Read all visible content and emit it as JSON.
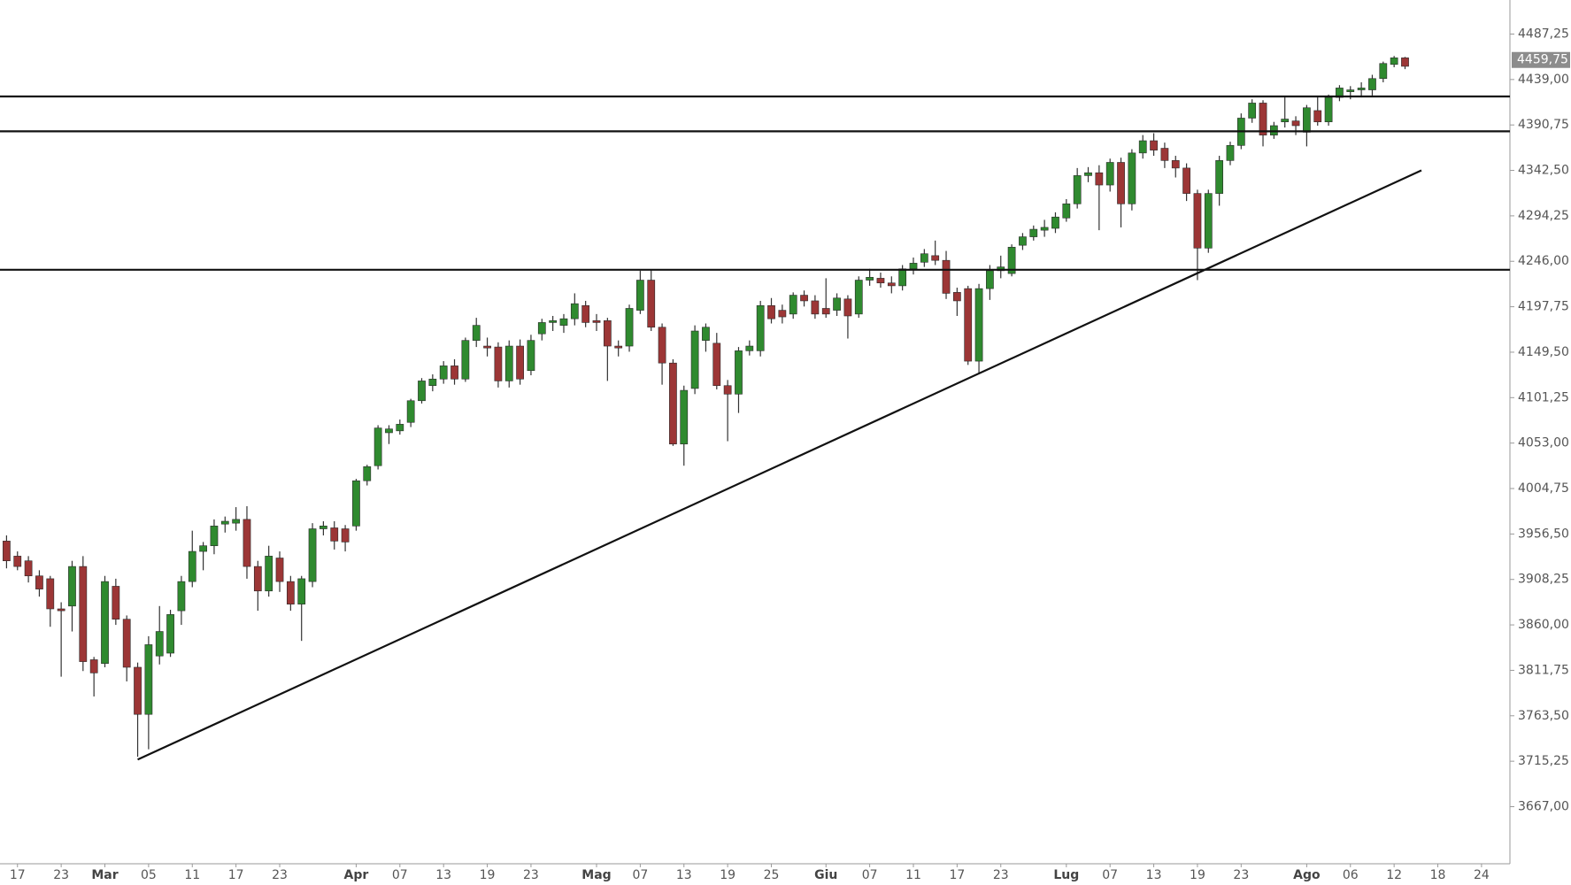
{
  "chart_data": {
    "type": "candlestick",
    "x": [
      0,
      1,
      2,
      3,
      4,
      5,
      6,
      7,
      8,
      9,
      10,
      11,
      12,
      13,
      14,
      15,
      16,
      17,
      18,
      19,
      20,
      21,
      22,
      23,
      24,
      25,
      26,
      27,
      28,
      29,
      30,
      31,
      32,
      33,
      34,
      35,
      36,
      37,
      38,
      39,
      40,
      41,
      42,
      43,
      44,
      45,
      46,
      47,
      48,
      49,
      50,
      51,
      52,
      53,
      54,
      55,
      56,
      57,
      58,
      59,
      60,
      61,
      62,
      63,
      64,
      65,
      66,
      67,
      68,
      69,
      70,
      71,
      72,
      73,
      74,
      75,
      76,
      77,
      78,
      79,
      80,
      81,
      82,
      83,
      84,
      85,
      86,
      87,
      88,
      89,
      90,
      91,
      92,
      93,
      94,
      95,
      96,
      97,
      98,
      99,
      100,
      101,
      102,
      103,
      104,
      105,
      106,
      107,
      108,
      109,
      110,
      111,
      112,
      113,
      114,
      115,
      116,
      117,
      118,
      119,
      120,
      121,
      122,
      123,
      124,
      125,
      126,
      127,
      128
    ],
    "open": [
      3949,
      3933,
      3928,
      3912,
      3909,
      3877,
      3880,
      3922,
      3823,
      3819,
      3901,
      3866,
      3815,
      3765,
      3827,
      3830,
      3875,
      3906,
      3938,
      3944,
      3967,
      3968,
      3972,
      3922,
      3896,
      3931,
      3906,
      3882,
      3906,
      3962,
      3963,
      3962,
      3965,
      4013,
      4029,
      4064,
      4066,
      4075,
      4098,
      4114,
      4121,
      4135,
      4121,
      4162,
      4156,
      4155,
      4119,
      4156,
      4130,
      4169,
      4181,
      4178,
      4185,
      4199,
      4183,
      4183,
      4156,
      4156,
      4194,
      4226,
      4176,
      4138,
      4052,
      4111,
      4162,
      4159,
      4114,
      4105,
      4151,
      4151,
      4199,
      4194,
      4190,
      4210,
      4204,
      4196,
      4194,
      4206,
      4190,
      4226,
      4228,
      4223,
      4220,
      4238,
      4245,
      4252,
      4247,
      4213,
      4217,
      4140,
      4217,
      4236,
      4233,
      4263,
      4272,
      4279,
      4281,
      4292,
      4307,
      4337,
      4340,
      4327,
      4351,
      4307,
      4361,
      4374,
      4366,
      4353,
      4345,
      4318,
      4260,
      4318,
      4353,
      4369,
      4398,
      4414,
      4380,
      4394,
      4395,
      4383,
      4406,
      4394,
      4420,
      4426,
      4428,
      4428,
      4440,
      4455,
      4462
    ],
    "high": [
      3955,
      3938,
      3933,
      3918,
      3912,
      3884,
      3928,
      3933,
      3826,
      3912,
      3909,
      3870,
      3820,
      3848,
      3880,
      3876,
      3912,
      3960,
      3948,
      3972,
      3975,
      3985,
      3986,
      3928,
      3944,
      3938,
      3912,
      3912,
      3968,
      3970,
      3970,
      3966,
      4015,
      4030,
      4072,
      4072,
      4078,
      4100,
      4122,
      4126,
      4140,
      4142,
      4165,
      4186,
      4165,
      4160,
      4162,
      4163,
      4168,
      4185,
      4188,
      4190,
      4212,
      4204,
      4190,
      4186,
      4162,
      4200,
      4236,
      4237,
      4180,
      4142,
      4114,
      4178,
      4180,
      4170,
      4120,
      4155,
      4162,
      4204,
      4207,
      4200,
      4213,
      4215,
      4210,
      4228,
      4212,
      4210,
      4230,
      4238,
      4234,
      4230,
      4242,
      4250,
      4259,
      4268,
      4257,
      4218,
      4220,
      4222,
      4242,
      4252,
      4264,
      4276,
      4284,
      4290,
      4298,
      4312,
      4345,
      4346,
      4348,
      4355,
      4356,
      4365,
      4380,
      4382,
      4372,
      4358,
      4350,
      4322,
      4322,
      4358,
      4373,
      4403,
      4418,
      4417,
      4394,
      4420,
      4400,
      4412,
      4420,
      4423,
      4433,
      4432,
      4436,
      4444,
      4458,
      4464,
      4463
    ],
    "low": [
      3920,
      3918,
      3905,
      3890,
      3858,
      3805,
      3853,
      3811,
      3784,
      3815,
      3860,
      3800,
      3720,
      3728,
      3818,
      3826,
      3860,
      3900,
      3918,
      3935,
      3958,
      3960,
      3909,
      3875,
      3890,
      3895,
      3875,
      3843,
      3900,
      3955,
      3940,
      3938,
      3960,
      4008,
      4025,
      4052,
      4062,
      4070,
      4095,
      4108,
      4116,
      4115,
      4118,
      4155,
      4145,
      4112,
      4112,
      4115,
      4125,
      4162,
      4172,
      4170,
      4178,
      4176,
      4172,
      4119,
      4145,
      4150,
      4190,
      4172,
      4115,
      4050,
      4029,
      4105,
      4150,
      4110,
      4055,
      4085,
      4146,
      4145,
      4180,
      4180,
      4185,
      4198,
      4185,
      4186,
      4188,
      4164,
      4186,
      4220,
      4218,
      4212,
      4215,
      4232,
      4240,
      4242,
      4206,
      4188,
      4136,
      4127,
      4205,
      4228,
      4230,
      4258,
      4268,
      4272,
      4276,
      4288,
      4302,
      4330,
      4279,
      4320,
      4282,
      4300,
      4355,
      4358,
      4345,
      4335,
      4310,
      4226,
      4255,
      4305,
      4348,
      4365,
      4393,
      4368,
      4376,
      4388,
      4380,
      4368,
      4390,
      4390,
      4416,
      4418,
      4420,
      4422,
      4436,
      4452,
      4450
    ],
    "close": [
      3928,
      3922,
      3912,
      3898,
      3877,
      3875,
      3922,
      3821,
      3809,
      3906,
      3866,
      3815,
      3765,
      3839,
      3853,
      3871,
      3906,
      3938,
      3944,
      3965,
      3970,
      3972,
      3922,
      3896,
      3933,
      3906,
      3882,
      3909,
      3962,
      3965,
      3949,
      3948,
      4013,
      4028,
      4069,
      4068,
      4073,
      4098,
      4119,
      4121,
      4135,
      4121,
      4162,
      4178,
      4154,
      4119,
      4156,
      4121,
      4162,
      4181,
      4183,
      4185,
      4201,
      4181,
      4181,
      4156,
      4154,
      4196,
      4226,
      4176,
      4138,
      4052,
      4109,
      4172,
      4176,
      4114,
      4105,
      4151,
      4156,
      4199,
      4185,
      4187,
      4210,
      4204,
      4190,
      4190,
      4207,
      4188,
      4226,
      4229,
      4223,
      4220,
      4238,
      4244,
      4254,
      4247,
      4212,
      4204,
      4140,
      4217,
      4236,
      4240,
      4261,
      4272,
      4280,
      4282,
      4293,
      4307,
      4337,
      4340,
      4327,
      4351,
      4307,
      4361,
      4374,
      4364,
      4353,
      4345,
      4318,
      4260,
      4318,
      4353,
      4369,
      4398,
      4414,
      4380,
      4390,
      4397,
      4390,
      4409,
      4394,
      4420,
      4430,
      4428,
      4430,
      4440,
      4456,
      4462,
      4453
    ],
    "up_color": "#2f8a2f",
    "down_color": "#9c3636",
    "xlim": [
      -0.6,
      137.6
    ],
    "xticks": [
      {
        "value": 1,
        "label": "17"
      },
      {
        "value": 5,
        "label": "23"
      },
      {
        "value": 9,
        "label": "Mar"
      },
      {
        "value": 13,
        "label": "05"
      },
      {
        "value": 17,
        "label": "11"
      },
      {
        "value": 21,
        "label": "17"
      },
      {
        "value": 25,
        "label": "23"
      },
      {
        "value": 32,
        "label": "Apr"
      },
      {
        "value": 36,
        "label": "07"
      },
      {
        "value": 40,
        "label": "13"
      },
      {
        "value": 44,
        "label": "19"
      },
      {
        "value": 48,
        "label": "23"
      },
      {
        "value": 54,
        "label": "Mag"
      },
      {
        "value": 58,
        "label": "07"
      },
      {
        "value": 62,
        "label": "13"
      },
      {
        "value": 66,
        "label": "19"
      },
      {
        "value": 70,
        "label": "25"
      },
      {
        "value": 75,
        "label": "Giu"
      },
      {
        "value": 79,
        "label": "07"
      },
      {
        "value": 83,
        "label": "11"
      },
      {
        "value": 87,
        "label": "17"
      },
      {
        "value": 91,
        "label": "23"
      },
      {
        "value": 97,
        "label": "Lug"
      },
      {
        "value": 101,
        "label": "07"
      },
      {
        "value": 105,
        "label": "13"
      },
      {
        "value": 109,
        "label": "19"
      },
      {
        "value": 113,
        "label": "23"
      },
      {
        "value": 119,
        "label": "Ago"
      },
      {
        "value": 123,
        "label": "06"
      },
      {
        "value": 127,
        "label": "12"
      },
      {
        "value": 131,
        "label": "18"
      },
      {
        "value": 135,
        "label": "24"
      }
    ],
    "ylim": [
      3606.4,
      4523.4
    ],
    "yticks": [
      {
        "value": 3667,
        "label": "3667,00"
      },
      {
        "value": 3715.25,
        "label": "3715,25"
      },
      {
        "value": 3763.5,
        "label": "3763,50"
      },
      {
        "value": 3811.75,
        "label": "3811,75"
      },
      {
        "value": 3860,
        "label": "3860,00"
      },
      {
        "value": 3908.25,
        "label": "3908,25"
      },
      {
        "value": 3956.5,
        "label": "3956,50"
      },
      {
        "value": 4004.75,
        "label": "4004,75"
      },
      {
        "value": 4053,
        "label": "4053,00"
      },
      {
        "value": 4101.25,
        "label": "4101,25"
      },
      {
        "value": 4149.5,
        "label": "4149,50"
      },
      {
        "value": 4197.75,
        "label": "4197,75"
      },
      {
        "value": 4246,
        "label": "4246,00"
      },
      {
        "value": 4294.25,
        "label": "4294,25"
      },
      {
        "value": 4342.5,
        "label": "4342,50"
      },
      {
        "value": 4390.75,
        "label": "4390,75"
      },
      {
        "value": 4439,
        "label": "4439,00"
      },
      {
        "value": 4487.25,
        "label": "4487,25"
      }
    ],
    "hlines": [
      4421,
      4384,
      4237
    ],
    "trendline": {
      "x": [
        12,
        129.5
      ],
      "values": [
        3717,
        4342.5
      ]
    },
    "last_price": {
      "value": 4459.75,
      "label": "4459,75"
    }
  }
}
